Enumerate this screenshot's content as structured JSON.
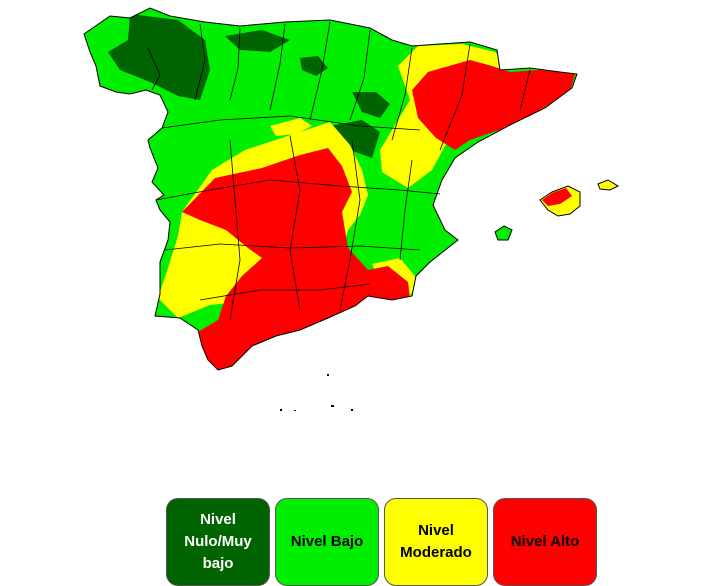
{
  "map": {
    "region": "España",
    "level_colors": {
      "nulo_muy_bajo": "#006400",
      "bajo": "#00ee00",
      "moderado": "#ffff00",
      "alto": "#ff0000"
    },
    "border_color": "#000000"
  },
  "legend": {
    "items": [
      {
        "label": "Nivel Nulo/Muy bajo",
        "color": "#006400",
        "text_color": "#ffffff"
      },
      {
        "label": "Nivel Bajo",
        "color": "#00ee00",
        "text_color": "#000000"
      },
      {
        "label": "Nivel Moderado",
        "color": "#ffff00",
        "text_color": "#000000"
      },
      {
        "label": "Nivel Alto",
        "color": "#ff0000",
        "text_color": "#000000"
      }
    ]
  }
}
